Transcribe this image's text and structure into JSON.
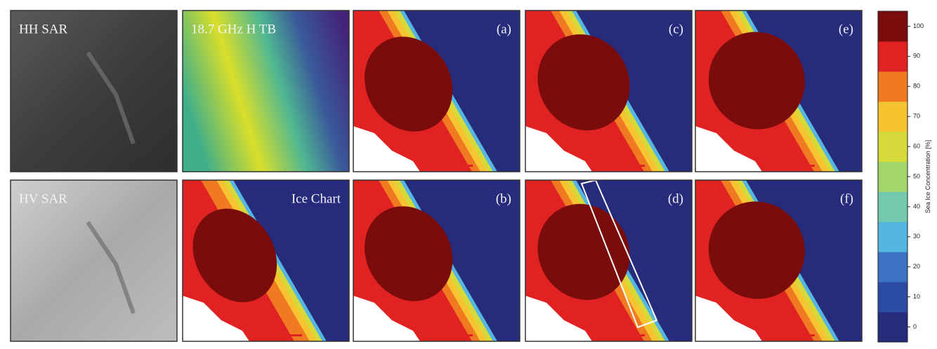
{
  "panels": [
    {
      "label": "HH SAR"
    },
    {
      "label": "18.7 GHz H TB"
    },
    {
      "label": "(a)"
    },
    {
      "label": "(c)"
    },
    {
      "label": "(e)"
    },
    {
      "label": "HV SAR"
    },
    {
      "label": "Ice Chart"
    },
    {
      "label": "(b)"
    },
    {
      "label": "(d)"
    },
    {
      "label": "(f)"
    }
  ],
  "colorbar": {
    "label": "Sea Ice Concentration [%]",
    "ticks": [
      0,
      10,
      20,
      30,
      40,
      50,
      60,
      70,
      80,
      90,
      100
    ],
    "colors": [
      "#272b7c",
      "#2c4ba2",
      "#3b72c2",
      "#55b6e2",
      "#73c9ae",
      "#a2d56a",
      "#d6d93a",
      "#f6c430",
      "#ef7a22",
      "#e02222",
      "#7a0c0c"
    ]
  }
}
